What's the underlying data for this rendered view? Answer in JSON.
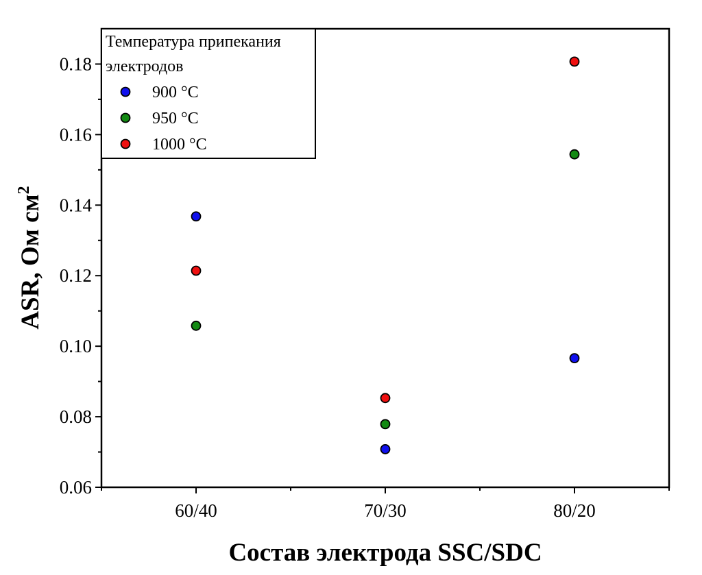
{
  "chart_data": {
    "type": "scatter",
    "title": "",
    "xlabel": "Состав электрода SSC/SDC",
    "ylabel_main": "ASR, Ом см",
    "ylabel_sup": "2",
    "categories": [
      "60/40",
      "70/30",
      "80/20"
    ],
    "ylim": [
      0.06,
      0.19
    ],
    "yticks": [
      0.06,
      0.08,
      0.1,
      0.12,
      0.14,
      0.16,
      0.18
    ],
    "ytick_labels": [
      "0.06",
      "0.08",
      "0.10",
      "0.12",
      "0.14",
      "0.16",
      "0.18"
    ],
    "grid": false,
    "legend": {
      "title_line1": "Температура припекания",
      "title_line2": "электродов",
      "placement": "top-left"
    },
    "series": [
      {
        "name": "900 °C",
        "color": "#1010ee",
        "values": [
          0.1368,
          0.0708,
          0.0966
        ]
      },
      {
        "name": "950 °C",
        "color": "#138a13",
        "values": [
          0.1058,
          0.0779,
          0.1544
        ]
      },
      {
        "name": "1000 °C",
        "color": "#f01010",
        "values": [
          0.1214,
          0.0853,
          0.1807
        ]
      }
    ]
  }
}
